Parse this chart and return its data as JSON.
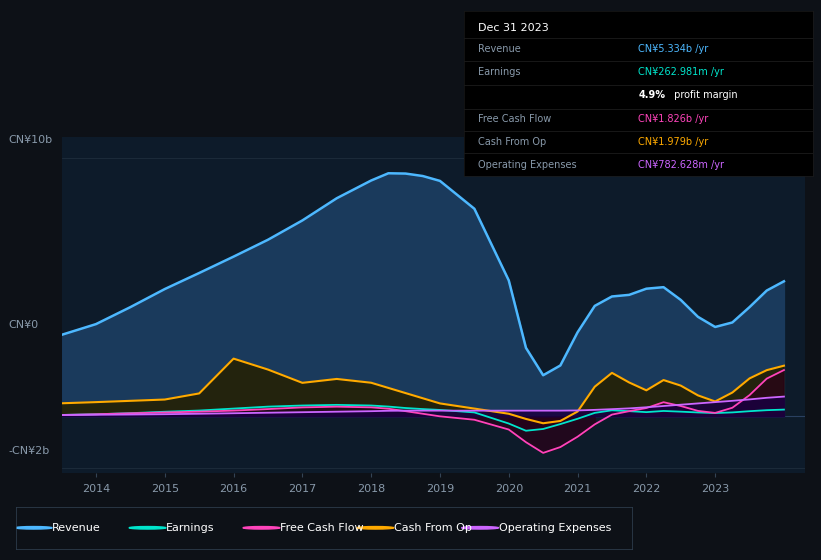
{
  "bg_color": "#0d1117",
  "plot_bg_color": "#0d1b2a",
  "ylabel_top": "CN¥10b",
  "ylabel_zero": "CN¥0",
  "ylabel_bottom": "-CN¥2b",
  "series": {
    "revenue": {
      "color": "#4db8ff",
      "fill_color": "#1a3a5c"
    },
    "earnings": {
      "color": "#00e5cc",
      "fill_color": "#1a3a3a"
    },
    "free_cash_flow": {
      "color": "#ff44bb",
      "fill_color": "#4d0033"
    },
    "cash_from_op": {
      "color": "#ffaa00",
      "fill_color": "#2d2000"
    },
    "operating_expenses": {
      "color": "#cc66ff",
      "fill_color": "#2a0050"
    }
  },
  "legend": [
    {
      "label": "Revenue",
      "color": "#4db8ff"
    },
    {
      "label": "Earnings",
      "color": "#00e5cc"
    },
    {
      "label": "Free Cash Flow",
      "color": "#ff44bb"
    },
    {
      "label": "Cash From Op",
      "color": "#ffaa00"
    },
    {
      "label": "Operating Expenses",
      "color": "#cc66ff"
    }
  ],
  "text_color": "#8899aa",
  "box_bg": "#000000",
  "box_border": "#333333"
}
